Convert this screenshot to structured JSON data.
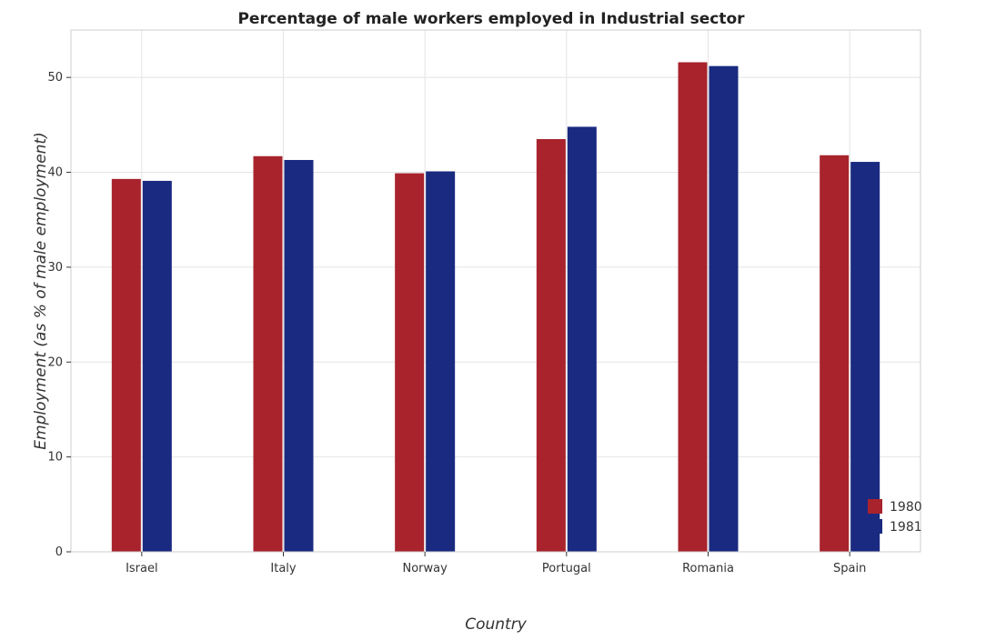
{
  "chart_data": {
    "type": "bar",
    "title": "Percentage of male workers employed in Industrial sector",
    "xlabel": "Country",
    "ylabel": "Employment (as % of male employment)",
    "categories": [
      "Israel",
      "Italy",
      "Norway",
      "Portugal",
      "Romania",
      "Spain"
    ],
    "series": [
      {
        "name": "1980",
        "color": "#a8232c",
        "values": [
          39.3,
          41.7,
          39.9,
          43.5,
          51.6,
          41.8
        ]
      },
      {
        "name": "1981",
        "color": "#1a2a80",
        "values": [
          39.1,
          41.3,
          40.1,
          44.8,
          51.2,
          41.1
        ]
      }
    ],
    "ylim": [
      0,
      55
    ],
    "yticks": [
      0,
      10,
      20,
      30,
      40,
      50
    ],
    "grid": true,
    "legend_position": "bottom-right"
  }
}
